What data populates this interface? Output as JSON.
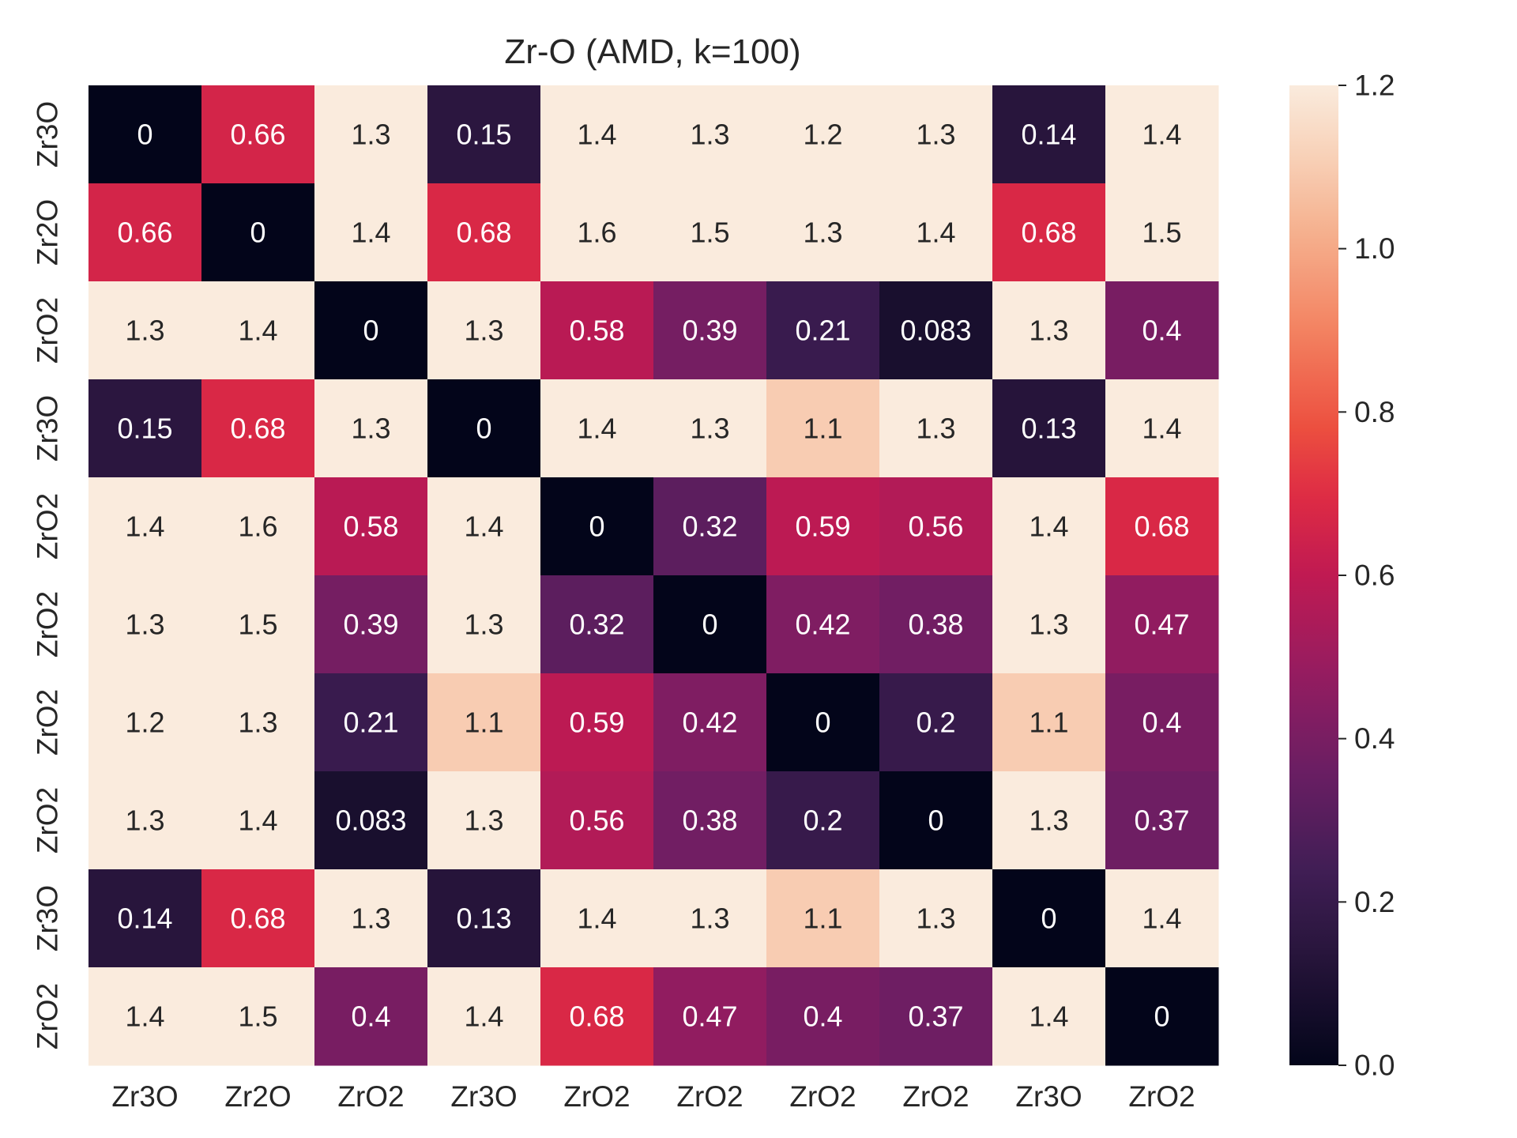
{
  "chart_data": {
    "type": "heatmap",
    "title": "Zr-O (AMD, k=100)",
    "x_labels": [
      "Zr3O",
      "Zr2O",
      "ZrO2",
      "Zr3O",
      "ZrO2",
      "ZrO2",
      "ZrO2",
      "ZrO2",
      "Zr3O",
      "ZrO2"
    ],
    "y_labels": [
      "Zr3O",
      "Zr2O",
      "ZrO2",
      "Zr3O",
      "ZrO2",
      "ZrO2",
      "ZrO2",
      "ZrO2",
      "Zr3O",
      "ZrO2"
    ],
    "matrix": [
      [
        0,
        0.66,
        1.3,
        0.15,
        1.4,
        1.3,
        1.2,
        1.3,
        0.14,
        1.4
      ],
      [
        0.66,
        0,
        1.4,
        0.68,
        1.6,
        1.5,
        1.3,
        1.4,
        0.68,
        1.5
      ],
      [
        1.3,
        1.4,
        0,
        1.3,
        0.58,
        0.39,
        0.21,
        0.083,
        1.3,
        0.4
      ],
      [
        0.15,
        0.68,
        1.3,
        0,
        1.4,
        1.3,
        1.1,
        1.3,
        0.13,
        1.4
      ],
      [
        1.4,
        1.6,
        0.58,
        1.4,
        0,
        0.32,
        0.59,
        0.56,
        1.4,
        0.68
      ],
      [
        1.3,
        1.5,
        0.39,
        1.3,
        0.32,
        0,
        0.42,
        0.38,
        1.3,
        0.47
      ],
      [
        1.2,
        1.3,
        0.21,
        1.1,
        0.59,
        0.42,
        0,
        0.2,
        1.1,
        0.4
      ],
      [
        1.3,
        1.4,
        0.083,
        1.3,
        0.56,
        0.38,
        0.2,
        0,
        1.3,
        0.37
      ],
      [
        0.14,
        0.68,
        1.3,
        0.13,
        1.4,
        1.3,
        1.1,
        1.3,
        0,
        1.4
      ],
      [
        1.4,
        1.5,
        0.4,
        1.4,
        0.68,
        0.47,
        0.4,
        0.37,
        1.4,
        0
      ]
    ],
    "colorbar": {
      "range": [
        0.0,
        1.2
      ],
      "ticks": [
        0.0,
        0.2,
        0.4,
        0.6,
        0.8,
        1.0,
        1.2
      ],
      "tick_labels": [
        "0.0",
        "0.2",
        "0.4",
        "0.6",
        "0.8",
        "1.0",
        "1.2"
      ],
      "colormap": "rocket"
    },
    "grid": false
  }
}
